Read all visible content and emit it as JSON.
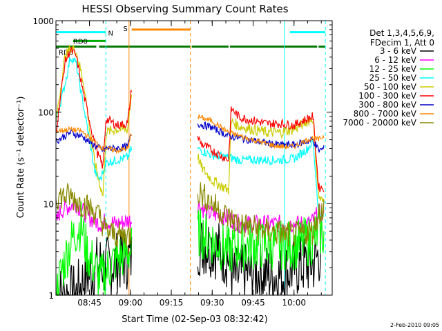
{
  "chart_data": {
    "type": "line",
    "title": "HESSI Observing Summary Count Rates",
    "xlabel": "Start Time (02-Sep-03 08:32:42)",
    "ylabel": "Count Rate (s⁻¹ detector⁻¹)",
    "y_scale": "log",
    "ylim": [
      1,
      1000
    ],
    "xlim": [
      "08:32:42",
      "10:14:00"
    ],
    "x_ticks": [
      "08:45",
      "09:00",
      "09:15",
      "09:30",
      "09:45",
      "10:00"
    ],
    "y_ticks": [
      "1",
      "10",
      "100",
      "1000"
    ],
    "grid": false,
    "footer_date": "2-Feb-2010 09:05",
    "legend": {
      "position": "right",
      "header": [
        "Det 1,3,4,5,6,9,",
        "FDecim 1, Att 0"
      ],
      "entries": [
        {
          "label": "3 - 6 keV",
          "color": "#000000"
        },
        {
          "label": "6 - 12 keV",
          "color": "#ff00ff"
        },
        {
          "label": "12 - 25 keV",
          "color": "#00ff00"
        },
        {
          "label": "25 - 50 keV",
          "color": "#00ffff"
        },
        {
          "label": "50 - 100 keV",
          "color": "#cccc00"
        },
        {
          "label": "100 - 300 keV",
          "color": "#ff0000"
        },
        {
          "label": "300 - 800 keV",
          "color": "#0000cc"
        },
        {
          "label": "800 - 7000 keV",
          "color": "#ff8800"
        },
        {
          "label": "7000 - 20000 keV",
          "color": "#888800"
        }
      ]
    },
    "flags": [
      {
        "label": "N",
        "color": "#00ffff",
        "level": 750,
        "segments": [
          [
            "08:32:42",
            "08:51:00"
          ],
          [
            "09:58:30",
            "10:11:30"
          ]
        ]
      },
      {
        "label": "S",
        "color": "#ff8800",
        "level": 800,
        "segments": [
          [
            "09:00:30",
            "09:22:00"
          ]
        ]
      },
      {
        "label": "RD0",
        "color": "#00aa00",
        "level": 600,
        "segments": [
          [
            "08:39:00",
            "08:51:00"
          ]
        ]
      },
      {
        "label": "RD6",
        "color": "#007700",
        "level": 520,
        "segments": [
          [
            "08:32:42",
            "08:47:30"
          ],
          [
            "08:48:30",
            "09:22:00"
          ],
          [
            "09:22:30",
            "09:36:00"
          ],
          [
            "09:36:30",
            "10:08:30"
          ],
          [
            "10:09:00",
            "10:11:30"
          ]
        ]
      }
    ],
    "markers": [
      {
        "time": "08:32:42",
        "color": "#00ffff",
        "style": "solid"
      },
      {
        "time": "08:51:00",
        "color": "#00ffff",
        "style": "dashed"
      },
      {
        "time": "08:59:30",
        "color": "#ff8800",
        "style": "solid"
      },
      {
        "time": "09:22:00",
        "color": "#ff8800",
        "style": "dashed"
      },
      {
        "time": "09:56:30",
        "color": "#00ffff",
        "style": "solid"
      },
      {
        "time": "10:11:30",
        "color": "#00ffff",
        "style": "dashed"
      }
    ],
    "gaps": [
      [
        "09:00:30",
        "09:24:30"
      ]
    ],
    "series": [
      {
        "name": "3 - 6 keV",
        "color": "#000000",
        "x": [
          "08:32:42",
          "08:40:00",
          "08:43:00",
          "08:47:00",
          "08:49:00",
          "08:51:00",
          "08:55:00",
          "08:59:00",
          "09:24:30",
          "09:30:00",
          "09:36:00",
          "09:38:00",
          "09:45:00",
          "09:55:00",
          "10:00:00",
          "10:07:00",
          "10:10:00"
        ],
        "y": [
          1,
          1,
          1.5,
          2,
          2.2,
          2,
          2.3,
          2.5,
          3.5,
          3.5,
          2.5,
          1.5,
          1.8,
          1.6,
          2,
          2.2,
          3
        ]
      },
      {
        "name": "6 - 12 keV",
        "color": "#ff00ff",
        "x": [
          "08:32:42",
          "08:34:00",
          "08:36:00",
          "08:40:00",
          "08:45:00",
          "08:49:00",
          "08:51:00",
          "08:55:00",
          "08:59:00",
          "09:24:30",
          "09:28:00",
          "09:36:00",
          "09:40:00",
          "09:50:00",
          "10:00:00",
          "10:05:00",
          "10:07:00",
          "10:09:00",
          "10:11:00"
        ],
        "y": [
          6,
          8,
          9,
          10,
          7,
          6,
          6.5,
          6,
          6.5,
          10,
          8,
          7,
          6,
          6,
          6,
          6,
          6.5,
          8,
          7
        ]
      },
      {
        "name": "12 - 25 keV",
        "color": "#00ff00",
        "x": [
          "08:32:42",
          "08:34:00",
          "08:37:00",
          "08:40:00",
          "08:42:00",
          "08:44:00",
          "08:47:00",
          "08:49:00",
          "08:51:00",
          "08:55:00",
          "08:59:00",
          "09:24:30",
          "09:30:00",
          "09:36:00",
          "09:40:00",
          "09:50:00",
          "10:00:00",
          "10:07:00",
          "10:09:00",
          "10:11:00"
        ],
        "y": [
          1,
          1.5,
          3,
          5,
          6,
          3,
          2,
          1.5,
          1.8,
          2.5,
          3,
          5,
          4,
          3,
          3.5,
          3.5,
          3.5,
          4,
          5,
          4.5
        ]
      },
      {
        "name": "25 - 50 keV",
        "color": "#00ffff",
        "x": [
          "08:32:42",
          "08:36:00",
          "08:38:00",
          "08:40:00",
          "08:42:00",
          "08:45:00",
          "08:47:00",
          "08:49:00",
          "08:51:00",
          "08:55:00",
          "08:59:00",
          "09:00:30",
          "09:24:30",
          "09:26:00",
          "09:30:00",
          "09:36:00",
          "09:40:00",
          "09:50:00",
          "09:55:00",
          "10:00:00",
          "10:05:00",
          "10:07:00",
          "10:09:00",
          "10:11:00"
        ],
        "y": [
          80,
          200,
          400,
          350,
          160,
          50,
          22,
          18,
          28,
          30,
          32,
          40,
          40,
          38,
          34,
          32,
          30,
          30,
          30,
          31,
          40,
          48,
          8,
          7
        ]
      },
      {
        "name": "50 - 100 keV",
        "color": "#cccc00",
        "x": [
          "08:32:42",
          "08:36:00",
          "08:38:00",
          "08:40:00",
          "08:43:00",
          "08:46:00",
          "08:48:00",
          "08:50:00",
          "08:51:00",
          "08:55:00",
          "08:59:00",
          "09:00:30",
          "09:24:30",
          "09:26:00",
          "09:30:00",
          "09:36:00",
          "09:37:00",
          "09:40:00",
          "09:50:00",
          "09:55:00",
          "10:00:00",
          "10:05:00",
          "10:07:00",
          "10:09:00",
          "10:11:00"
        ],
        "y": [
          80,
          400,
          500,
          480,
          200,
          40,
          20,
          12,
          60,
          65,
          65,
          170,
          35,
          25,
          18,
          14,
          80,
          70,
          60,
          60,
          65,
          80,
          85,
          12,
          10
        ]
      },
      {
        "name": "100 - 300 keV",
        "color": "#ff0000",
        "x": [
          "08:32:42",
          "08:36:00",
          "08:38:00",
          "08:40:00",
          "08:43:00",
          "08:46:00",
          "08:48:00",
          "08:50:00",
          "08:51:00",
          "08:55:00",
          "08:59:00",
          "09:00:30",
          "09:24:30",
          "09:26:00",
          "09:30:00",
          "09:36:00",
          "09:37:00",
          "09:40:00",
          "09:50:00",
          "09:55:00",
          "10:00:00",
          "10:05:00",
          "10:07:00",
          "10:09:00",
          "10:11:00"
        ],
        "y": [
          60,
          350,
          480,
          420,
          150,
          60,
          35,
          25,
          85,
          72,
          75,
          190,
          55,
          45,
          38,
          30,
          110,
          88,
          75,
          75,
          72,
          85,
          90,
          15,
          15
        ]
      },
      {
        "name": "300 - 800 keV",
        "color": "#0000cc",
        "x": [
          "08:32:42",
          "08:38:00",
          "08:42:00",
          "08:46:00",
          "08:50:00",
          "08:51:00",
          "08:55:00",
          "08:59:00",
          "09:00:30",
          "09:24:30",
          "09:30:00",
          "09:36:00",
          "09:40:00",
          "09:50:00",
          "09:55:00",
          "10:00:00",
          "10:05:00",
          "10:07:00",
          "10:09:00",
          "10:11:00"
        ],
        "y": [
          48,
          60,
          55,
          45,
          38,
          40,
          40,
          42,
          60,
          75,
          68,
          55,
          52,
          46,
          44,
          44,
          48,
          50,
          38,
          40
        ]
      },
      {
        "name": "800 - 7000 keV",
        "color": "#ff8800",
        "x": [
          "08:32:42",
          "08:38:00",
          "08:42:00",
          "08:46:00",
          "08:50:00",
          "08:51:00",
          "08:55:00",
          "08:59:00",
          "09:00:30",
          "09:24:30",
          "09:30:00",
          "09:36:00",
          "09:40:00",
          "09:50:00",
          "09:55:00",
          "10:00:00",
          "10:05:00",
          "10:07:00",
          "10:09:00",
          "10:11:00"
        ],
        "y": [
          62,
          65,
          62,
          50,
          40,
          40,
          38,
          40,
          60,
          90,
          80,
          60,
          55,
          45,
          42,
          42,
          50,
          52,
          50,
          55
        ]
      },
      {
        "name": "7000 - 20000 keV",
        "color": "#888800",
        "x": [
          "08:32:42",
          "08:38:00",
          "08:42:00",
          "08:45:00",
          "08:47:00",
          "08:49:00",
          "08:51:00",
          "08:55:00",
          "08:59:00",
          "09:24:30",
          "09:30:00",
          "09:36:00",
          "09:40:00",
          "09:50:00",
          "10:00:00",
          "10:07:00",
          "10:09:00",
          "10:11:00"
        ],
        "y": [
          12,
          12,
          10,
          9,
          8,
          7,
          5,
          4.5,
          4.5,
          14,
          10,
          7,
          6,
          5,
          4.5,
          5,
          8,
          9
        ]
      }
    ]
  }
}
